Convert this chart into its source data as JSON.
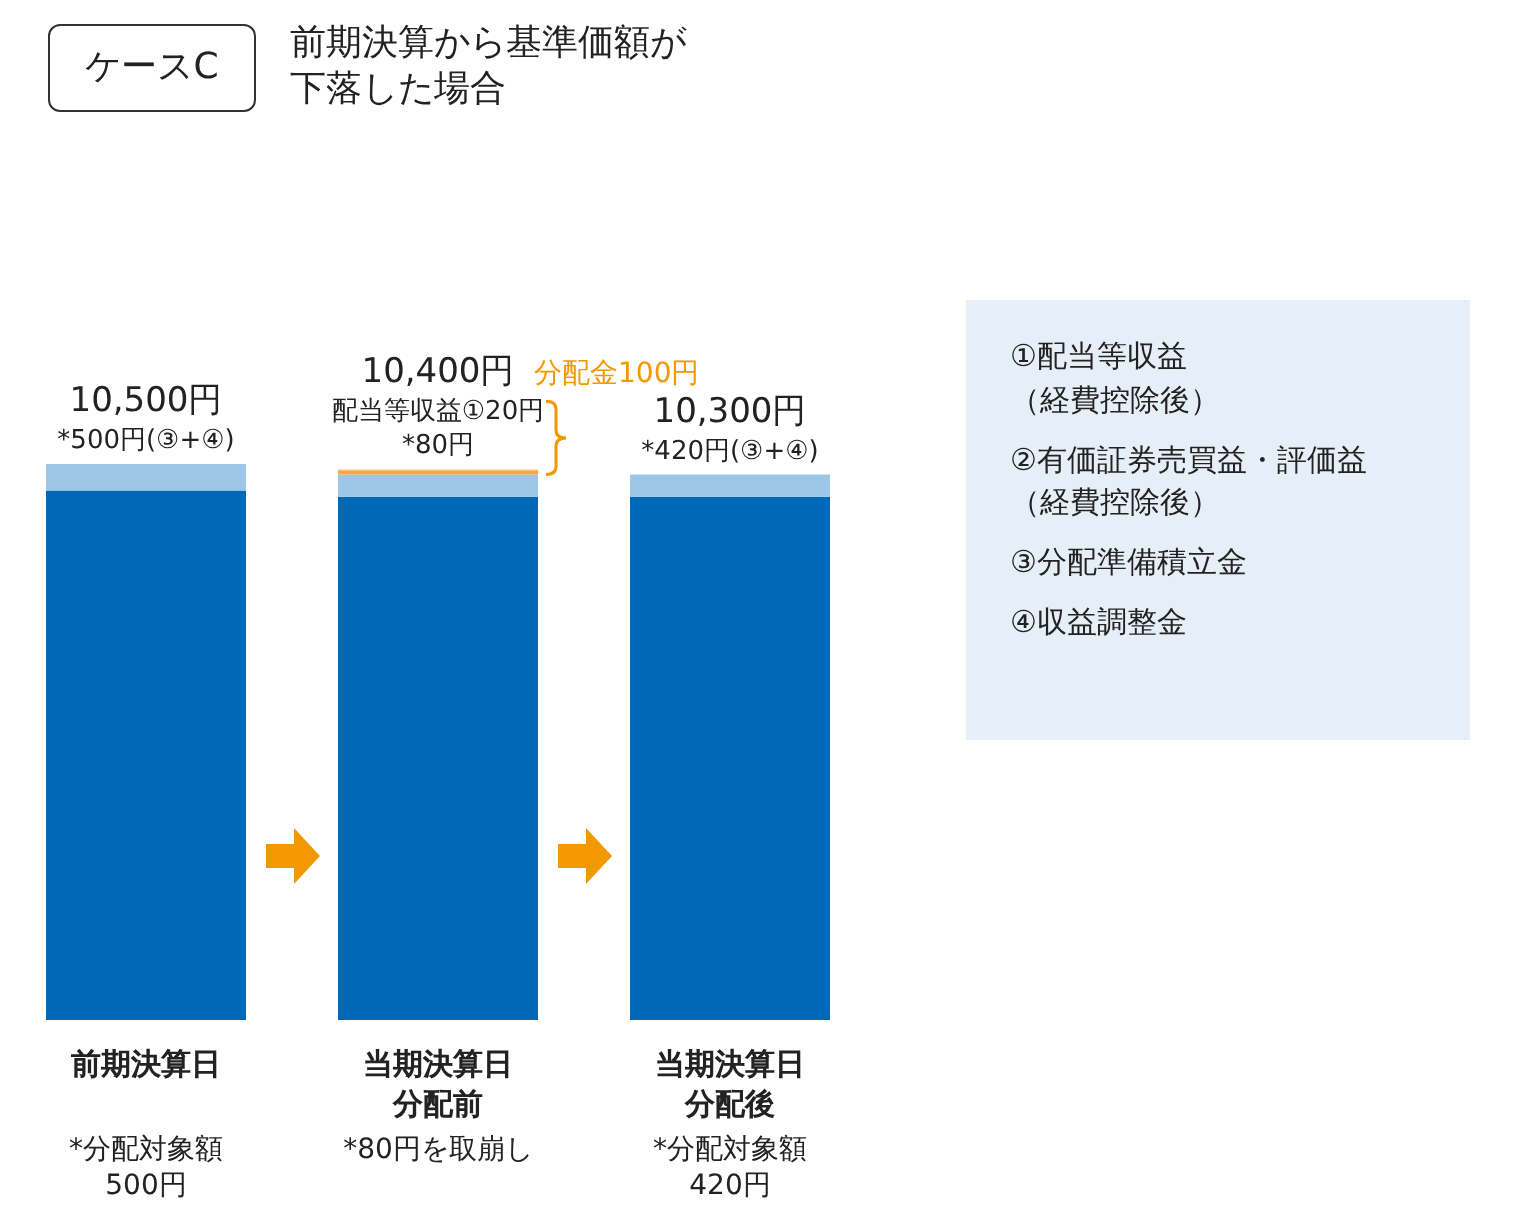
{
  "chart_data": {
    "type": "bar",
    "title": "前期決算から基準価額が下落した場合",
    "subtitle": "ケースC",
    "categories": [
      "前期決算日",
      "当期決算日分配前",
      "当期決算日分配後"
    ],
    "stacked": true,
    "ylim": [
      0,
      10500
    ],
    "series": [
      {
        "color": "#0068b7",
        "values": [
          10000,
          9880,
          9880
        ]
      },
      {
        "color": "#9dc6e6",
        "values": [
          500,
          420,
          420
        ],
        "value_labels": [
          "*500円(③+④)",
          null,
          "*420円(③+④)"
        ]
      },
      {
        "color": "#f5a93c",
        "values": [
          null,
          80,
          null
        ],
        "value_labels": [
          null,
          "*80円",
          null
        ]
      },
      {
        "color": "#fdd49a",
        "values": [
          null,
          20,
          null
        ],
        "value_labels": [
          null,
          "配当等収益①20円",
          null
        ]
      }
    ],
    "totals": [
      "10,500円",
      "10,400円",
      "10,300円"
    ],
    "annotations": [
      "①配当等収益（経費控除後）",
      "②有価証券売買益・評価益（経費控除後）",
      "③分配準備積立金",
      "④収益調整金",
      "分配金100円",
      "*分配対象額500円",
      "*80円を取崩し",
      "*分配対象額420円"
    ]
  }
}
